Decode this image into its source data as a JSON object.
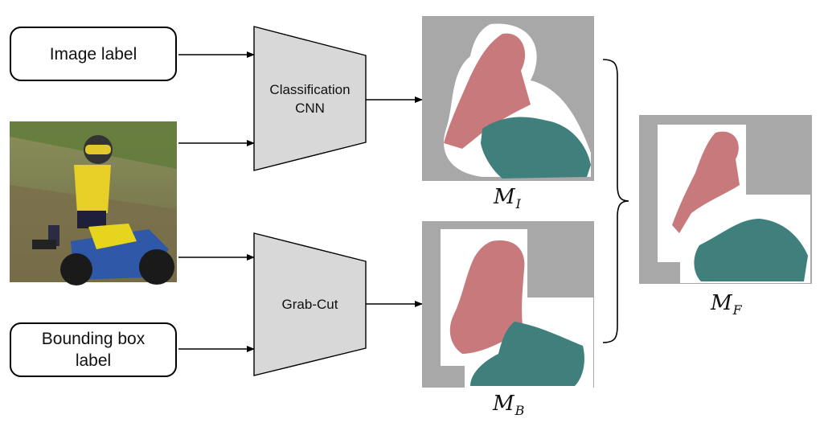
{
  "inputs": {
    "image_label": "Image label",
    "bbox_label_line1": "Bounding box",
    "bbox_label_line2": "label"
  },
  "models": {
    "cnn_line1": "Classification",
    "cnn_line2": "CNN",
    "grabcut": "Grab-Cut"
  },
  "outputs": {
    "mi_symbol": "M",
    "mi_sub": "I",
    "mb_symbol": "M",
    "mb_sub": "B",
    "mf_symbol": "M",
    "mf_sub": "F"
  },
  "colors": {
    "person": "#c8797b",
    "motorbike": "#3f7f7c",
    "background": "#a9a8a8",
    "uncertain": "#ffffff",
    "trapezoid_fill": "#d8d8d8"
  }
}
